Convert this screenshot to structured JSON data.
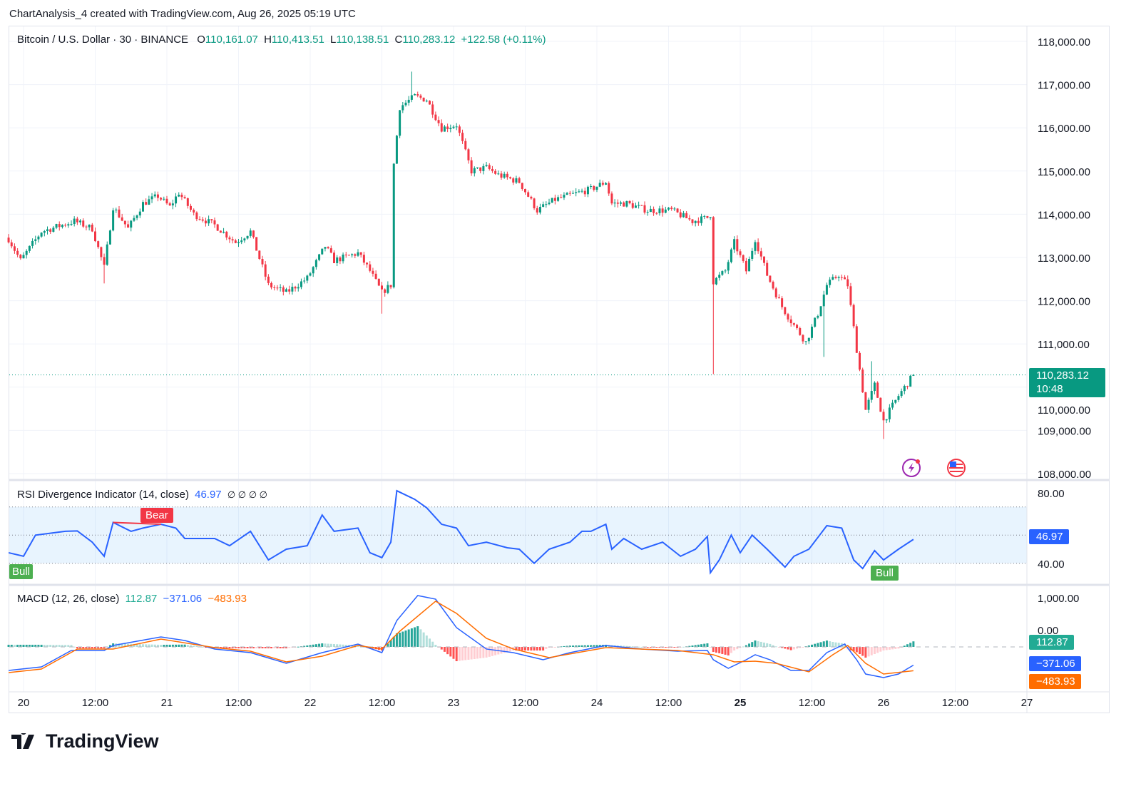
{
  "header": {
    "title": "ChartAnalysis_4 created with TradingView.com, Aug 26, 2025 05:19 UTC"
  },
  "symbol": {
    "name": "Bitcoin / U.S. Dollar · 30 · BINANCE",
    "open_label": "O",
    "open": "110,161.07",
    "high_label": "H",
    "high": "110,413.51",
    "low_label": "L",
    "low": "110,138.51",
    "close_label": "C",
    "close": "110,283.12",
    "change": "+122.58 (+0.11%)",
    "last_price_tag": "110,283.12",
    "countdown": "10:48"
  },
  "rsi_legend": {
    "name": "RSI Divergence Indicator (14, close)",
    "value": "46.97",
    "flags": "∅ ∅ ∅ ∅",
    "tag": "46.97",
    "bull_label": "Bull",
    "bear_label": "Bear"
  },
  "macd_legend": {
    "name": "MACD (12, 26, close)",
    "hist": "112.87",
    "macd": "−371.06",
    "signal": "−483.93"
  },
  "colors": {
    "up": "#089981",
    "down": "#f23645",
    "rsi": "#2962ff",
    "macd": "#2962ff",
    "signal": "#ff6d00",
    "hist_up": "#26a69a",
    "hist_down": "#ff5252",
    "bull": "#4caf50",
    "bear": "#f23645"
  },
  "icons": [
    "lightning-event-icon",
    "us-flag-icon"
  ],
  "footer": {
    "logo": "TradingView"
  },
  "chart_data": [
    {
      "type": "candlestick",
      "title": "Bitcoin / U.S. Dollar · 30 · BINANCE",
      "interval": "30m",
      "ylim": [
        108000,
        118000
      ],
      "y_ticks": [
        "118,000.00",
        "117,000.00",
        "116,000.00",
        "115,000.00",
        "114,000.00",
        "113,000.00",
        "112,000.00",
        "111,000.00",
        "110,000.00",
        "109,000.00",
        "108,000.00"
      ],
      "y_tick_values": [
        118000,
        117000,
        116000,
        115000,
        114000,
        113000,
        112000,
        111000,
        110000,
        109000,
        108000
      ],
      "x_ticks": [
        "20",
        "12:00",
        "21",
        "12:00",
        "22",
        "12:00",
        "23",
        "12:00",
        "24",
        "12:00",
        "25",
        "12:00",
        "26",
        "12:00",
        "27"
      ],
      "grid": true,
      "last_price": 110283.12,
      "close_path": [
        [
          "08-19 21:30",
          113430
        ],
        [
          "08-19 23:30",
          112930
        ],
        [
          "08-20 03:00",
          113600
        ],
        [
          "08-20 08:30",
          113840
        ],
        [
          "08-20 11:30",
          113670
        ],
        [
          "08-20 13:30",
          112770
        ],
        [
          "08-20 15:00",
          114170
        ],
        [
          "08-20 17:30",
          113670
        ],
        [
          "08-20 20:00",
          114250
        ],
        [
          "08-20 22:30",
          114420
        ],
        [
          "08-21 00:30",
          114170
        ],
        [
          "08-21 02:00",
          114500
        ],
        [
          "08-21 04:30",
          114000
        ],
        [
          "08-21 08:00",
          113750
        ],
        [
          "08-21 11:30",
          113350
        ],
        [
          "08-21 14:00",
          113600
        ],
        [
          "08-21 17:00",
          112360
        ],
        [
          "08-21 20:00",
          112190
        ],
        [
          "08-21 23:30",
          112520
        ],
        [
          "08-22 02:30",
          113260
        ],
        [
          "08-22 04:00",
          112930
        ],
        [
          "08-22 08:00",
          113100
        ],
        [
          "08-22 10:00",
          112690
        ],
        [
          "08-22 12:00",
          112190
        ],
        [
          "08-22 13:30",
          112360
        ],
        [
          "08-22 14:00",
          115160
        ],
        [
          "08-22 15:00",
          116480
        ],
        [
          "08-22 17:30",
          116730
        ],
        [
          "08-22 19:30",
          116650
        ],
        [
          "08-22 22:00",
          115990
        ],
        [
          "08-23 00:30",
          116070
        ],
        [
          "08-23 03:00",
          115000
        ],
        [
          "08-23 05:30",
          115080
        ],
        [
          "08-23 07:30",
          114910
        ],
        [
          "08-23 11:00",
          114750
        ],
        [
          "08-23 14:00",
          114090
        ],
        [
          "08-23 17:00",
          114340
        ],
        [
          "08-23 21:00",
          114500
        ],
        [
          "08-23 23:00",
          114580
        ],
        [
          "08-24 01:30",
          114750
        ],
        [
          "08-24 02:30",
          114250
        ],
        [
          "08-24 05:00",
          114250
        ],
        [
          "08-24 08:30",
          114090
        ],
        [
          "08-24 12:30",
          114090
        ],
        [
          "08-24 16:00",
          113840
        ],
        [
          "08-24 18:30",
          113920
        ],
        [
          "08-24 19:00",
          114000
        ],
        [
          "08-24 19:30",
          112440
        ],
        [
          "08-24 21:30",
          112690
        ],
        [
          "08-24 23:00",
          113350
        ],
        [
          "08-25 01:00",
          112690
        ],
        [
          "08-25 02:30",
          113430
        ],
        [
          "08-25 04:30",
          112600
        ],
        [
          "08-25 07:00",
          111860
        ],
        [
          "08-25 08:30",
          111530
        ],
        [
          "08-25 11:00",
          111040
        ],
        [
          "08-25 13:00",
          111700
        ],
        [
          "08-25 14:30",
          112360
        ],
        [
          "08-25 16:30",
          112600
        ],
        [
          "08-25 18:00",
          112360
        ],
        [
          "08-25 19:30",
          110870
        ],
        [
          "08-25 21:00",
          109470
        ],
        [
          "08-25 22:30",
          110050
        ],
        [
          "08-26 00:00",
          109220
        ],
        [
          "08-26 02:30",
          109800
        ],
        [
          "08-26 05:00",
          110283.12
        ]
      ],
      "extreme_wicks": [
        {
          "time": "08-22 17:00",
          "high": 117300
        },
        {
          "time": "08-22 12:00",
          "low": 111700
        },
        {
          "time": "08-20 13:30",
          "low": 112400
        },
        {
          "time": "08-24 19:30",
          "low": 110300
        },
        {
          "time": "08-25 14:00",
          "low": 110700
        },
        {
          "time": "08-26 00:00",
          "low": 108800
        },
        {
          "time": "08-25 22:00",
          "high": 110600
        }
      ]
    },
    {
      "type": "line",
      "title": "RSI Divergence Indicator (14, close)",
      "ylim": [
        20,
        85
      ],
      "y_ticks": [
        "80.00",
        "40.00"
      ],
      "y_tick_values": [
        80,
        40
      ],
      "band": [
        30,
        70
      ],
      "midline": 50,
      "series": [
        {
          "name": "RSI",
          "points": [
            [
              "08-19 21:30",
              37.5
            ],
            [
              "08-20 00:00",
              35
            ],
            [
              "08-20 02:00",
              50
            ],
            [
              "08-20 07:00",
              52.7
            ],
            [
              "08-20 09:00",
              53
            ],
            [
              "08-20 11:30",
              45
            ],
            [
              "08-20 13:30",
              35
            ],
            [
              "08-20 15:00",
              59
            ],
            [
              "08-20 18:00",
              52.7
            ],
            [
              "08-20 20:00",
              55
            ],
            [
              "08-20 23:00",
              57.7
            ],
            [
              "08-21 01:30",
              55
            ],
            [
              "08-21 03:00",
              47.6
            ],
            [
              "08-21 08:00",
              47.6
            ],
            [
              "08-21 10:30",
              42.5
            ],
            [
              "08-21 14:00",
              52.7
            ],
            [
              "08-21 17:00",
              32.4
            ],
            [
              "08-21 20:00",
              40
            ],
            [
              "08-21 23:30",
              42.5
            ],
            [
              "08-22 02:00",
              64.3
            ],
            [
              "08-22 04:00",
              52.7
            ],
            [
              "08-22 08:00",
              55
            ],
            [
              "08-22 10:00",
              37.5
            ],
            [
              "08-22 12:00",
              34
            ],
            [
              "08-22 13:30",
              45
            ],
            [
              "08-22 14:30",
              81.5
            ],
            [
              "08-22 17:30",
              75.4
            ],
            [
              "08-22 19:30",
              69.4
            ],
            [
              "08-22 22:00",
              57.7
            ],
            [
              "08-23 00:30",
              55
            ],
            [
              "08-23 02:30",
              42.5
            ],
            [
              "08-23 05:30",
              45
            ],
            [
              "08-23 09:00",
              41
            ],
            [
              "08-23 11:00",
              40
            ],
            [
              "08-23 13:30",
              30
            ],
            [
              "08-23 16:00",
              40
            ],
            [
              "08-23 19:30",
              45
            ],
            [
              "08-23 21:30",
              52.7
            ],
            [
              "08-23 23:00",
              52.7
            ],
            [
              "08-24 01:30",
              57.7
            ],
            [
              "08-24 02:30",
              40
            ],
            [
              "08-24 04:30",
              47.6
            ],
            [
              "08-24 07:30",
              40
            ],
            [
              "08-24 11:00",
              45
            ],
            [
              "08-24 14:00",
              35
            ],
            [
              "08-24 16:30",
              40
            ],
            [
              "08-24 18:30",
              49
            ],
            [
              "08-24 19:00",
              23.3
            ],
            [
              "08-24 20:30",
              32.4
            ],
            [
              "08-24 22:30",
              50
            ],
            [
              "08-25 00:00",
              37.5
            ],
            [
              "08-25 02:00",
              50
            ],
            [
              "08-25 04:30",
              40
            ],
            [
              "08-25 07:30",
              27.3
            ],
            [
              "08-25 09:00",
              35
            ],
            [
              "08-25 11:30",
              40
            ],
            [
              "08-25 14:30",
              56.7
            ],
            [
              "08-25 17:00",
              55
            ],
            [
              "08-25 19:00",
              32.4
            ],
            [
              "08-25 20:30",
              26.3
            ],
            [
              "08-25 22:30",
              39
            ],
            [
              "08-26 00:00",
              32.4
            ],
            [
              "08-26 02:30",
              40
            ],
            [
              "08-26 05:00",
              46.97
            ]
          ]
        }
      ],
      "annotations": [
        {
          "label": "Bull",
          "time": "08-19 21:30",
          "type": "bullish-divergence"
        },
        {
          "label": "Bear",
          "time": "08-20 23:00",
          "type": "bearish-divergence",
          "from": "08-20 15:00"
        },
        {
          "label": "Bull",
          "time": "08-26 00:30",
          "type": "bullish-divergence"
        }
      ]
    },
    {
      "type": "line",
      "title": "MACD (12, 26, close)",
      "y_ticks": [
        "1,000.00",
        "0.00"
      ],
      "y_tick_values": [
        1000,
        0
      ],
      "series": [
        {
          "name": "MACD",
          "points": [
            [
              "08-19 21:30",
              -478
            ],
            [
              "08-20 03:00",
              -406
            ],
            [
              "08-20 08:00",
              -72
            ],
            [
              "08-20 13:30",
              -72
            ],
            [
              "08-20 15:00",
              29
            ],
            [
              "08-20 23:00",
              203
            ],
            [
              "08-21 03:00",
              130
            ],
            [
              "08-21 08:00",
              -43
            ],
            [
              "08-21 14:00",
              -116
            ],
            [
              "08-21 20:00",
              -333
            ],
            [
              "08-22 02:00",
              -116
            ],
            [
              "08-22 08:00",
              58
            ],
            [
              "08-22 12:00",
              -116
            ],
            [
              "08-22 14:30",
              536
            ],
            [
              "08-22 18:00",
              1044
            ],
            [
              "08-22 21:00",
              971
            ],
            [
              "08-23 00:30",
              391
            ],
            [
              "08-23 05:30",
              -43
            ],
            [
              "08-23 10:00",
              -116
            ],
            [
              "08-23 15:00",
              -261
            ],
            [
              "08-23 19:30",
              -116
            ],
            [
              "08-24 01:30",
              29
            ],
            [
              "08-24 07:30",
              -43
            ],
            [
              "08-24 13:30",
              -87
            ],
            [
              "08-24 18:30",
              -72
            ],
            [
              "08-24 19:30",
              -261
            ],
            [
              "08-24 22:00",
              -435
            ],
            [
              "08-25 01:00",
              -261
            ],
            [
              "08-25 02:30",
              -159
            ],
            [
              "08-25 05:00",
              -261
            ],
            [
              "08-25 08:30",
              -478
            ],
            [
              "08-25 11:30",
              -478
            ],
            [
              "08-25 14:30",
              -116
            ],
            [
              "08-25 17:30",
              58
            ],
            [
              "08-25 19:30",
              -261
            ],
            [
              "08-25 21:00",
              -551
            ],
            [
              "08-26 00:00",
              -623
            ],
            [
              "08-26 02:30",
              -551
            ],
            [
              "08-26 05:00",
              -371.06
            ]
          ]
        },
        {
          "name": "Signal",
          "points": [
            [
              "08-19 21:30",
              -522
            ],
            [
              "08-20 03:00",
              -450
            ],
            [
              "08-20 09:00",
              -43
            ],
            [
              "08-20 15:00",
              -43
            ],
            [
              "08-20 23:00",
              160
            ],
            [
              "08-21 08:00",
              -15
            ],
            [
              "08-21 14:00",
              -87
            ],
            [
              "08-21 20:00",
              -304
            ],
            [
              "08-22 02:00",
              -188
            ],
            [
              "08-22 08:00",
              29
            ],
            [
              "08-22 12:00",
              -43
            ],
            [
              "08-22 15:00",
              319
            ],
            [
              "08-22 21:00",
              928
            ],
            [
              "08-23 00:30",
              681
            ],
            [
              "08-23 05:30",
              174
            ],
            [
              "08-23 10:00",
              -43
            ],
            [
              "08-23 16:00",
              -217
            ],
            [
              "08-24 01:30",
              -15
            ],
            [
              "08-24 13:30",
              -72
            ],
            [
              "08-24 19:30",
              -159
            ],
            [
              "08-24 23:00",
              -304
            ],
            [
              "08-25 02:30",
              -290
            ],
            [
              "08-25 06:00",
              -333
            ],
            [
              "08-25 11:30",
              -507
            ],
            [
              "08-25 15:30",
              -159
            ],
            [
              "08-25 18:00",
              29
            ],
            [
              "08-25 21:00",
              -333
            ],
            [
              "08-26 00:00",
              -551
            ],
            [
              "08-26 05:00",
              -483.93
            ]
          ]
        }
      ],
      "histogram_last": 112.87
    }
  ]
}
